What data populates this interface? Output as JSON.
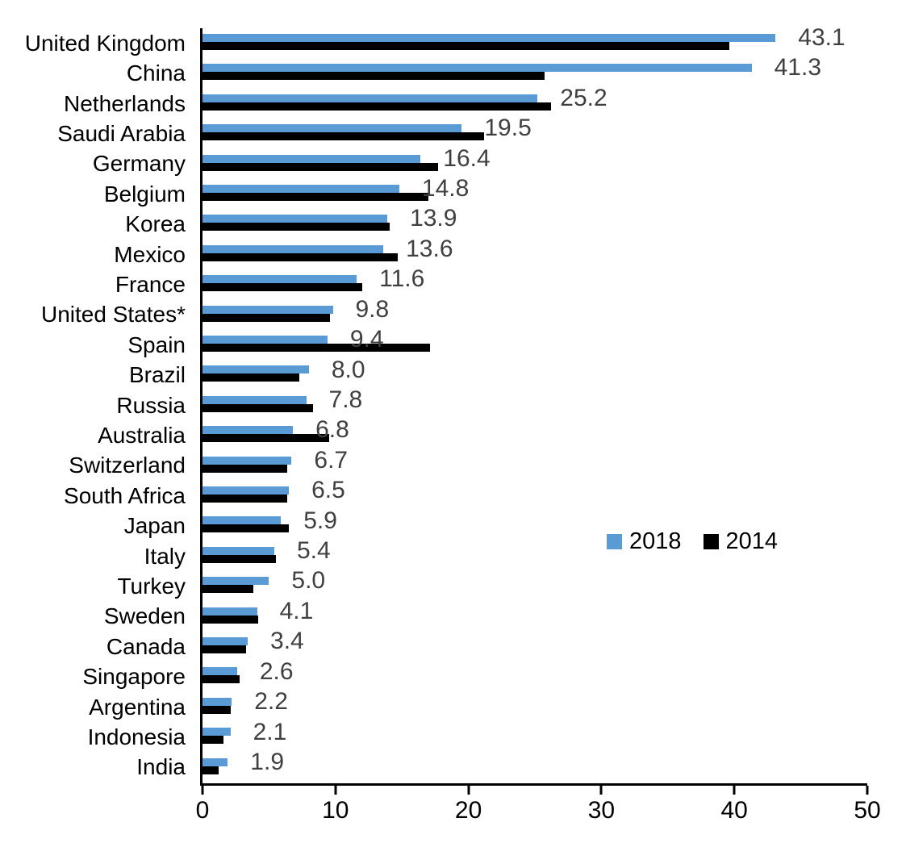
{
  "chart_data": {
    "type": "bar",
    "orientation": "horizontal",
    "categories": [
      "United Kingdom",
      "China",
      "Netherlands",
      "Saudi Arabia",
      "Germany",
      "Belgium",
      "Korea",
      "Mexico",
      "France",
      "United States*",
      "Spain",
      "Brazil",
      "Russia",
      "Australia",
      "Switzerland",
      "South Africa",
      "Japan",
      "Italy",
      "Turkey",
      "Sweden",
      "Canada",
      "Singapore",
      "Argentina",
      "Indonesia",
      "India"
    ],
    "series": [
      {
        "name": "2018",
        "color": "#5B9BD5",
        "values": [
          43.1,
          41.3,
          25.2,
          19.5,
          16.4,
          14.8,
          13.9,
          13.6,
          11.6,
          9.8,
          9.4,
          8.0,
          7.8,
          6.8,
          6.7,
          6.5,
          5.9,
          5.4,
          5.0,
          4.1,
          3.4,
          2.6,
          2.2,
          2.1,
          1.9
        ]
      },
      {
        "name": "2014",
        "color": "#000000",
        "values": [
          39.6,
          25.7,
          26.2,
          21.2,
          17.7,
          17.0,
          14.1,
          14.7,
          12.0,
          9.6,
          17.1,
          7.3,
          8.3,
          9.5,
          6.4,
          6.4,
          6.5,
          5.5,
          3.8,
          4.2,
          3.3,
          2.8,
          2.1,
          1.6,
          1.2
        ]
      }
    ],
    "data_labels": [
      "43.1",
      "41.3",
      "25.2",
      "19.5",
      "16.4",
      "14.8",
      "13.9",
      "13.6",
      "11.6",
      "9.8",
      "9.4",
      "8.0",
      "7.8",
      "6.8",
      "6.7",
      "6.5",
      "5.9",
      "5.4",
      "5.0",
      "4.1",
      "3.4",
      "2.6",
      "2.2",
      "2.1",
      "1.9"
    ],
    "data_label_series": "2018",
    "data_label_color": "#404040",
    "xlim": [
      0,
      50
    ],
    "x_ticks": [
      "0",
      "10",
      "20",
      "30",
      "40",
      "50"
    ],
    "axis_color": "#000000",
    "grid": false,
    "legend": {
      "position": "center-right",
      "entries": [
        {
          "label": "2018",
          "color": "#5B9BD5"
        },
        {
          "label": "2014",
          "color": "#000000"
        }
      ]
    }
  }
}
